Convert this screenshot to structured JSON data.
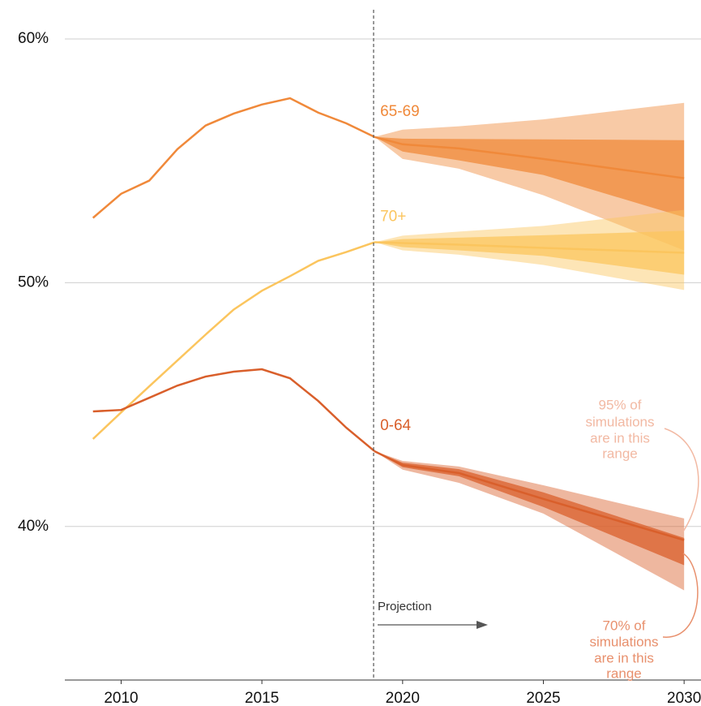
{
  "chart_data": {
    "type": "line",
    "xlim": [
      2008,
      2030.6
    ],
    "ylim": [
      33.7,
      61.2
    ],
    "xticks": [
      2010,
      2015,
      2020,
      2025,
      2030
    ],
    "yticks": [
      {
        "value": 40,
        "label": "40%"
      },
      {
        "value": 50,
        "label": "50%"
      },
      {
        "value": 60,
        "label": "60%"
      }
    ],
    "grid": true,
    "series": [
      {
        "name": "65-69",
        "color": "#f0893a",
        "x": [
          2009,
          2010,
          2011,
          2012,
          2013,
          2014,
          2015,
          2016,
          2017,
          2018,
          2019
        ],
        "values": [
          52.66,
          53.65,
          54.19,
          55.48,
          56.45,
          56.94,
          57.31,
          57.57,
          56.98,
          56.54,
          55.98
        ],
        "projection": {
          "x": [
            2019,
            2020,
            2022,
            2025,
            2030
          ],
          "median": [
            55.98,
            55.68,
            55.51,
            55.08,
            54.29
          ],
          "band_95": {
            "upper": [
              55.98,
              56.28,
              56.42,
              56.7,
              57.38
            ],
            "lower": [
              55.98,
              55.08,
              54.68,
              53.59,
              51.33
            ]
          },
          "band_70": {
            "upper": [
              55.98,
              55.91,
              55.9,
              55.88,
              55.85
            ],
            "lower": [
              55.98,
              55.38,
              55.02,
              54.42,
              52.69
            ]
          }
        }
      },
      {
        "name": "70+",
        "color": "#fbc55e",
        "x": [
          2009,
          2010,
          2011,
          2012,
          2013,
          2014,
          2015,
          2016,
          2017,
          2018,
          2019
        ],
        "values": [
          43.59,
          44.68,
          45.75,
          46.81,
          47.87,
          48.9,
          49.67,
          50.27,
          50.9,
          51.26,
          51.66
        ],
        "projection": {
          "x": [
            2019,
            2020,
            2022,
            2025,
            2030
          ],
          "median": [
            51.66,
            51.63,
            51.56,
            51.43,
            51.23
          ],
          "band_95": {
            "upper": [
              51.66,
              51.93,
              52.1,
              52.33,
              52.99
            ],
            "lower": [
              51.66,
              51.33,
              51.15,
              50.73,
              49.7
            ]
          },
          "band_70": {
            "upper": [
              51.66,
              51.79,
              51.85,
              51.95,
              52.13
            ],
            "lower": [
              51.66,
              51.46,
              51.33,
              51.1,
              50.33
            ]
          }
        }
      },
      {
        "name": "0-64",
        "color": "#d95f2b",
        "x": [
          2009,
          2010,
          2011,
          2012,
          2013,
          2014,
          2015,
          2016,
          2017,
          2018,
          2019
        ],
        "values": [
          44.72,
          44.78,
          45.28,
          45.78,
          46.15,
          46.35,
          46.45,
          46.08,
          45.15,
          44.05,
          43.09
        ],
        "projection": {
          "x": [
            2019,
            2020,
            2022,
            2025,
            2030
          ],
          "median": [
            43.09,
            42.52,
            42.19,
            41.13,
            39.44
          ],
          "band_95": {
            "upper": [
              43.09,
              42.69,
              42.46,
              41.69,
              40.33
            ],
            "lower": [
              43.09,
              42.33,
              41.79,
              40.53,
              37.38
            ]
          },
          "band_70": {
            "upper": [
              43.09,
              42.62,
              42.35,
              41.4,
              39.53
            ],
            "lower": [
              43.09,
              42.43,
              42.06,
              40.8,
              38.41
            ]
          }
        }
      }
    ],
    "annotations": {
      "projection": "Projection",
      "band_95": [
        "95% of",
        "simulations",
        "are in this",
        "range"
      ],
      "band_70": [
        "70% of",
        "simulations",
        "are in this",
        "range"
      ]
    }
  }
}
